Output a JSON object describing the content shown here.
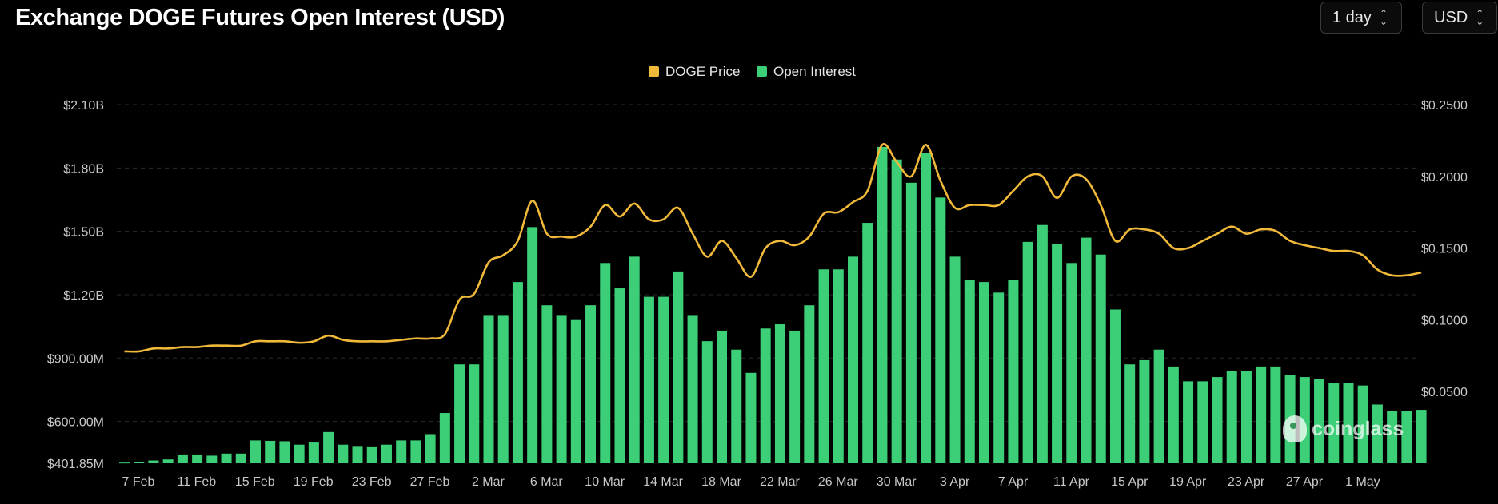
{
  "header": {
    "title": "Exchange DOGE Futures Open Interest (USD)",
    "interval": "1 day",
    "currency": "USD"
  },
  "watermark": "coinglass",
  "colors": {
    "price": "#f0b93a",
    "open_interest": "#3ccf78",
    "background": "#000000",
    "grid": "#2a2a2a",
    "axis_text": "#c8c8c8"
  },
  "icons": {
    "select_chevron": "chevron-up-down-icon",
    "watermark_logo": "coinglass-logo-icon"
  },
  "chart_data": {
    "type": "bar",
    "title": "Exchange DOGE Futures Open Interest (USD)",
    "legend": {
      "placement": "top-center",
      "entries": [
        "DOGE Price",
        "Open Interest"
      ]
    },
    "grid": true,
    "x_tick_labels": [
      "7 Feb",
      "11 Feb",
      "15 Feb",
      "19 Feb",
      "23 Feb",
      "27 Feb",
      "2 Mar",
      "6 Mar",
      "10 Mar",
      "14 Mar",
      "18 Mar",
      "22 Mar",
      "26 Mar",
      "30 Mar",
      "3 Apr",
      "7 Apr",
      "11 Apr",
      "15 Apr",
      "19 Apr",
      "23 Apr",
      "27 Apr",
      "1 May"
    ],
    "left_axis": {
      "min": 401850000,
      "max": 2100000000,
      "ticks": [
        401850000,
        600000000,
        900000000,
        1200000000,
        1500000000,
        1800000000,
        2100000000
      ],
      "tick_labels": [
        "$401.85M",
        "$600.00M",
        "$900.00M",
        "$1.20B",
        "$1.50B",
        "$1.80B",
        "$2.10B"
      ]
    },
    "right_axis": {
      "min": 0,
      "max": 0.25,
      "ticks": [
        0.05,
        0.1,
        0.15,
        0.2,
        0.25
      ],
      "tick_labels": [
        "$0.0500",
        "$0.1000",
        "$0.1500",
        "$0.2000",
        "$0.2500"
      ]
    },
    "series": [
      {
        "name": "Open Interest",
        "type": "bar",
        "axis": "left",
        "values": [
          405000000,
          406000000,
          415000000,
          420000000,
          440000000,
          440000000,
          438000000,
          448000000,
          448000000,
          510000000,
          508000000,
          506000000,
          490000000,
          500000000,
          550000000,
          490000000,
          480000000,
          478000000,
          490000000,
          510000000,
          510000000,
          540000000,
          640000000,
          870000000,
          870000000,
          1100000000,
          1100000000,
          1260000000,
          1520000000,
          1150000000,
          1100000000,
          1080000000,
          1150000000,
          1350000000,
          1230000000,
          1380000000,
          1190000000,
          1190000000,
          1310000000,
          1100000000,
          980000000,
          1030000000,
          940000000,
          830000000,
          1040000000,
          1060000000,
          1030000000,
          1150000000,
          1320000000,
          1320000000,
          1380000000,
          1540000000,
          1900000000,
          1840000000,
          1730000000,
          1870000000,
          1660000000,
          1380000000,
          1270000000,
          1260000000,
          1210000000,
          1270000000,
          1450000000,
          1530000000,
          1440000000,
          1350000000,
          1470000000,
          1390000000,
          1130000000,
          870000000,
          890000000,
          940000000,
          860000000,
          790000000,
          790000000,
          810000000,
          840000000,
          840000000,
          860000000,
          860000000,
          820000000,
          810000000,
          800000000,
          780000000,
          780000000,
          770000000,
          680000000,
          650000000,
          650000000,
          655000000
        ]
      },
      {
        "name": "DOGE Price",
        "type": "line",
        "axis": "right",
        "values": [
          0.078,
          0.078,
          0.08,
          0.08,
          0.081,
          0.081,
          0.082,
          0.082,
          0.082,
          0.085,
          0.085,
          0.085,
          0.084,
          0.085,
          0.089,
          0.086,
          0.085,
          0.085,
          0.085,
          0.086,
          0.087,
          0.087,
          0.09,
          0.114,
          0.118,
          0.14,
          0.145,
          0.155,
          0.183,
          0.16,
          0.158,
          0.158,
          0.165,
          0.18,
          0.172,
          0.181,
          0.17,
          0.17,
          0.178,
          0.16,
          0.144,
          0.155,
          0.143,
          0.13,
          0.15,
          0.155,
          0.152,
          0.158,
          0.174,
          0.175,
          0.182,
          0.19,
          0.222,
          0.21,
          0.2,
          0.222,
          0.197,
          0.178,
          0.18,
          0.18,
          0.18,
          0.19,
          0.2,
          0.2,
          0.185,
          0.2,
          0.198,
          0.18,
          0.155,
          0.163,
          0.163,
          0.16,
          0.15,
          0.15,
          0.155,
          0.16,
          0.165,
          0.16,
          0.163,
          0.162,
          0.155,
          0.152,
          0.15,
          0.148,
          0.148,
          0.145,
          0.135,
          0.131,
          0.131,
          0.133
        ]
      }
    ]
  }
}
